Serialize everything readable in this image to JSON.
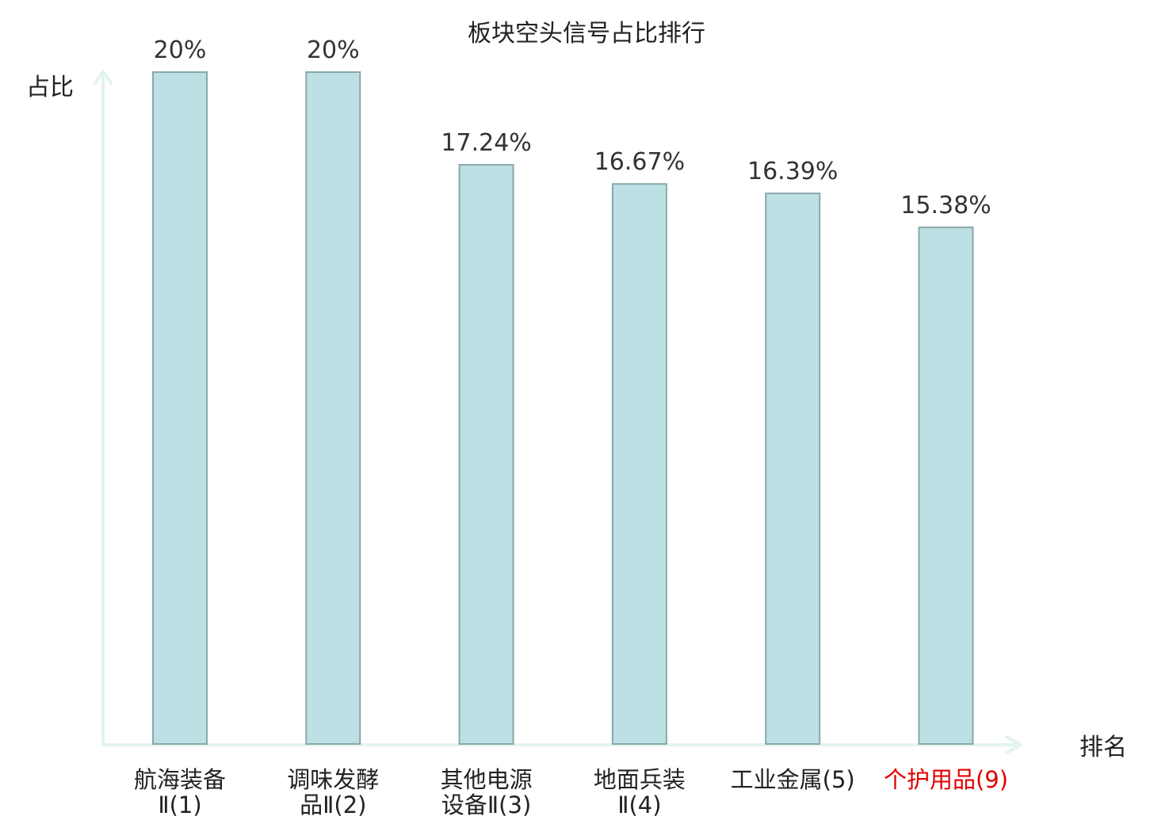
{
  "chart_data": {
    "type": "bar",
    "title": "板块空头信号占比排行",
    "ylabel": "占比",
    "xlabel": "排名",
    "categories": [
      [
        "航海装备",
        "Ⅱ(1)"
      ],
      [
        "调味发酵",
        "品Ⅱ(2)"
      ],
      [
        "其他电源",
        "设备Ⅱ(3)"
      ],
      [
        "地面兵装",
        "Ⅱ(4)"
      ],
      [
        "工业金属(5)"
      ],
      [
        "个护用品(9)"
      ]
    ],
    "highlight_categories": [
      5
    ],
    "values": [
      20,
      20,
      17.24,
      16.67,
      16.39,
      15.38
    ],
    "value_labels": [
      "20%",
      "20%",
      "17.24%",
      "16.67%",
      "16.39%",
      "15.38%"
    ],
    "ylim": [
      0,
      20
    ],
    "grid": false,
    "colors": {
      "bar_fill": "#bce0e3",
      "bar_stroke": "#8aa8ab",
      "axis": "#e3f3f0",
      "highlight_text": "#e00000",
      "text": "#222222"
    }
  }
}
